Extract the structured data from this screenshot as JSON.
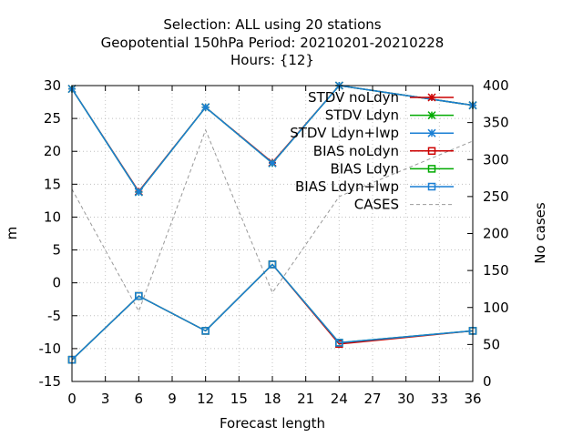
{
  "chart_data": {
    "type": "line",
    "title_lines": [
      "Selection: ALL using    20 stations",
      "Geopotential 150hPa   Period: 20210201-20210228",
      "Hours: {12}"
    ],
    "xlabel": "Forecast length",
    "ylabel": "m",
    "y2label": "No cases",
    "xlim": [
      0,
      36
    ],
    "ylim": [
      -15,
      30
    ],
    "y2lim": [
      0,
      400
    ],
    "xticks": [
      0,
      3,
      6,
      9,
      12,
      15,
      18,
      21,
      24,
      27,
      30,
      33,
      36
    ],
    "yticks": [
      -15,
      -10,
      -5,
      0,
      5,
      10,
      15,
      20,
      25,
      30
    ],
    "y2ticks": [
      0,
      50,
      100,
      150,
      200,
      250,
      300,
      350,
      400
    ],
    "grid": true,
    "legend_position": "top-right",
    "x": [
      0,
      6,
      12,
      18,
      24,
      36
    ],
    "series": [
      {
        "name": "STDV noLdyn",
        "axis": "y",
        "color": "#cc0000",
        "marker": "star",
        "dash": "solid",
        "values": [
          29.5,
          13.9,
          26.7,
          18.3,
          30.0,
          27.0
        ]
      },
      {
        "name": "STDV Ldyn",
        "axis": "y",
        "color": "#00aa00",
        "marker": "star",
        "dash": "solid",
        "values": [
          29.5,
          13.8,
          26.7,
          18.2,
          30.0,
          27.0
        ]
      },
      {
        "name": "STDV Ldyn+lwp",
        "axis": "y",
        "color": "#1a7fd4",
        "marker": "star",
        "dash": "solid",
        "values": [
          29.5,
          13.8,
          26.7,
          18.2,
          30.0,
          27.0
        ]
      },
      {
        "name": "BIAS noLdyn",
        "axis": "y",
        "color": "#cc0000",
        "marker": "square",
        "dash": "solid",
        "values": [
          -11.7,
          -2.0,
          -7.3,
          2.8,
          -9.3,
          -7.3
        ]
      },
      {
        "name": "BIAS Ldyn",
        "axis": "y",
        "color": "#00aa00",
        "marker": "square",
        "dash": "solid",
        "values": [
          -11.7,
          -2.0,
          -7.3,
          2.8,
          -9.1,
          -7.3
        ]
      },
      {
        "name": "BIAS Ldyn+lwp",
        "axis": "y",
        "color": "#1a7fd4",
        "marker": "square",
        "dash": "solid",
        "values": [
          -11.7,
          -2.0,
          -7.3,
          2.8,
          -9.1,
          -7.3
        ]
      },
      {
        "name": "CASES",
        "axis": "y2",
        "color": "#999999",
        "marker": "none",
        "dash": "dashed",
        "values": [
          260,
          95,
          340,
          120,
          250,
          325
        ]
      }
    ]
  }
}
